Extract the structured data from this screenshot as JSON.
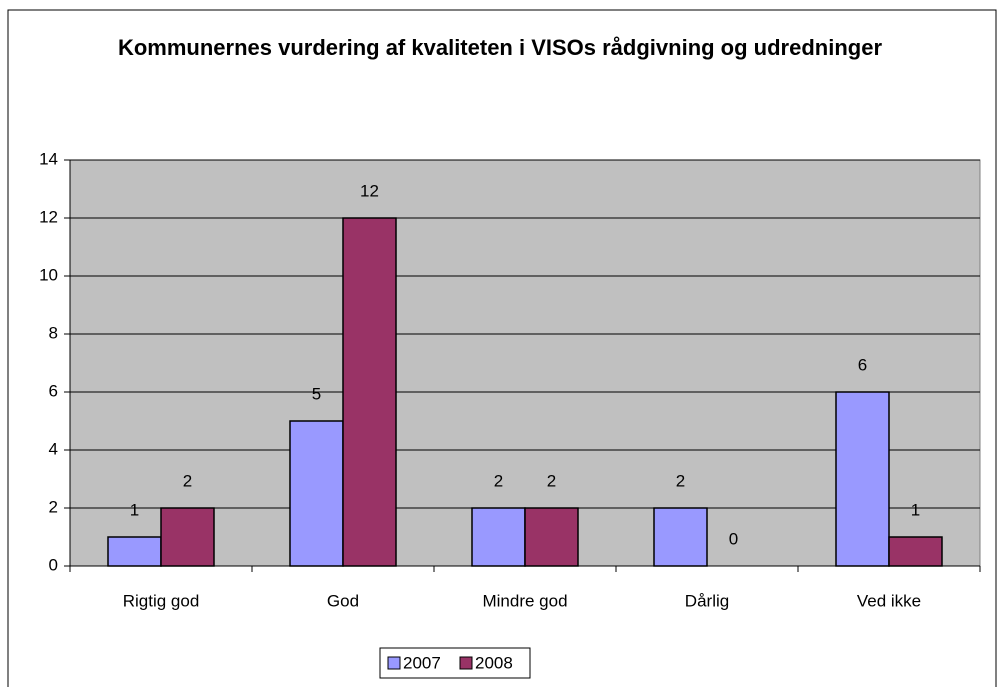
{
  "chart_data": {
    "type": "bar",
    "title": "Kommunernes vurdering af kvaliteten i VISOs rådgivning og udredninger",
    "categories": [
      "Rigtig god",
      "God",
      "Mindre god",
      "Dårlig",
      "Ved ikke"
    ],
    "series": [
      {
        "name": "2007",
        "color": "#9999ff",
        "values": [
          1,
          5,
          2,
          2,
          6
        ]
      },
      {
        "name": "2008",
        "color": "#993366",
        "values": [
          2,
          12,
          2,
          0,
          1
        ]
      }
    ],
    "ylim": [
      0,
      14
    ],
    "yticks": [
      0,
      2,
      4,
      6,
      8,
      10,
      12,
      14
    ],
    "grid": true,
    "legend": "bottom"
  }
}
